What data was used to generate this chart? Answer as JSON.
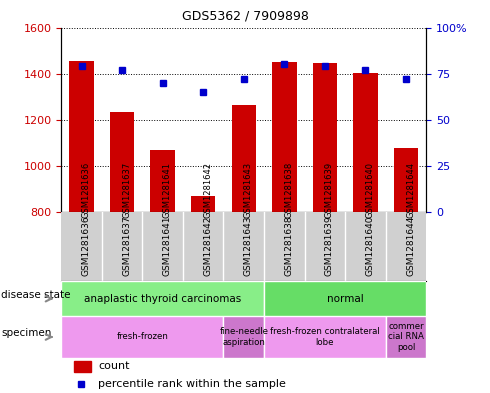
{
  "title": "GDS5362 / 7909898",
  "samples": [
    "GSM1281636",
    "GSM1281637",
    "GSM1281641",
    "GSM1281642",
    "GSM1281643",
    "GSM1281638",
    "GSM1281639",
    "GSM1281640",
    "GSM1281644"
  ],
  "counts": [
    1455,
    1235,
    1070,
    870,
    1265,
    1450,
    1445,
    1405,
    1080
  ],
  "percentiles": [
    79,
    77,
    70,
    65,
    72,
    80,
    79,
    77,
    72
  ],
  "ylim_left": [
    800,
    1600
  ],
  "ylim_right": [
    0,
    100
  ],
  "yticks_left": [
    800,
    1000,
    1200,
    1400,
    1600
  ],
  "yticks_right": [
    0,
    25,
    50,
    75,
    100
  ],
  "bar_color": "#cc0000",
  "dot_color": "#0000cc",
  "plot_bg": "#ffffff",
  "label_area_bg": "#d0d0d0",
  "disease_state_groups": [
    {
      "label": "anaplastic thyroid carcinomas",
      "start": 0,
      "end": 5,
      "color": "#88ee88"
    },
    {
      "label": "normal",
      "start": 5,
      "end": 9,
      "color": "#66dd66"
    }
  ],
  "specimen_groups": [
    {
      "label": "fresh-frozen",
      "start": 0,
      "end": 4,
      "color": "#ee99ee"
    },
    {
      "label": "fine-needle\naspiration",
      "start": 4,
      "end": 5,
      "color": "#cc77cc"
    },
    {
      "label": "fresh-frozen contralateral\nlobe",
      "start": 5,
      "end": 8,
      "color": "#ee99ee"
    },
    {
      "label": "commer\ncial RNA\npool",
      "start": 8,
      "end": 9,
      "color": "#cc77cc"
    }
  ],
  "legend_count_color": "#cc0000",
  "legend_pct_color": "#0000cc",
  "left_label_color": "#cc0000",
  "right_label_color": "#0000cc"
}
